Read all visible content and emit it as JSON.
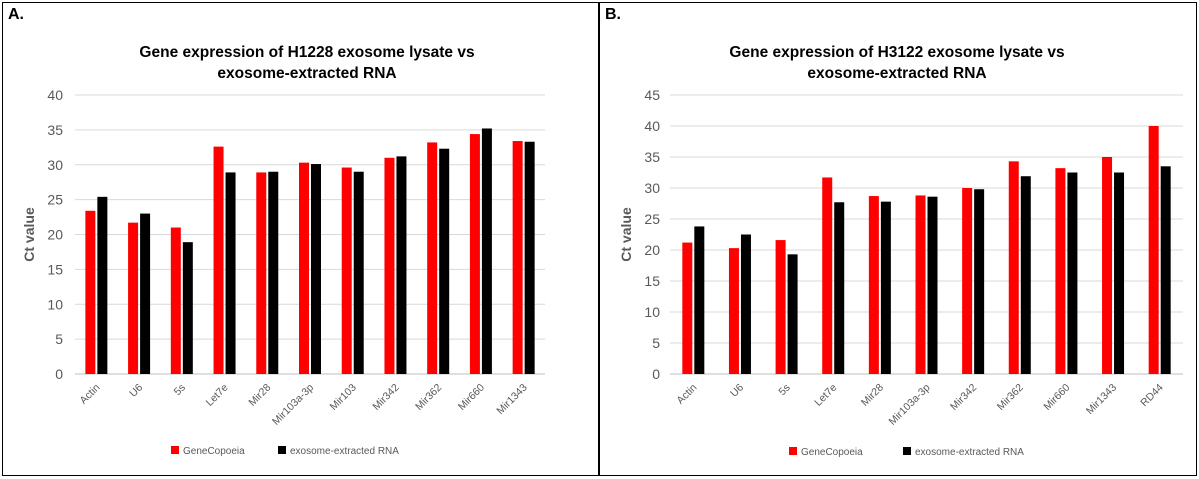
{
  "panels": [
    {
      "label": "A."
    },
    {
      "label": "B."
    }
  ],
  "colors": {
    "genecopoeia": "#ff0000",
    "exosome": "#000000",
    "grid": "#d9d9d9",
    "axis_text": "#595959"
  },
  "chart_data": [
    {
      "type": "bar",
      "title_lines": [
        "Gene expression of H1228  exosome lysate vs",
        "exosome-extracted RNA"
      ],
      "xlabel": "",
      "ylabel": "Ct value",
      "ylim": [
        0,
        40
      ],
      "yticks": [
        0,
        5,
        10,
        15,
        20,
        25,
        30,
        35,
        40
      ],
      "grid": true,
      "legend_position": "bottom",
      "categories": [
        "Actin",
        "U6",
        "5s",
        "Let7e",
        "Mir28",
        "Mir103a-3p",
        "Mir103",
        "Mir342",
        "Mir362",
        "Mir660",
        "Mir1343"
      ],
      "series": [
        {
          "name": "GeneCopoeia",
          "values": [
            23.4,
            21.7,
            21.0,
            32.6,
            28.9,
            30.3,
            29.6,
            31.0,
            33.2,
            34.4,
            33.4
          ]
        },
        {
          "name": "exosome-extracted RNA",
          "values": [
            25.4,
            23.0,
            18.9,
            28.9,
            29.0,
            30.1,
            29.0,
            31.2,
            32.3,
            35.2,
            33.3
          ]
        }
      ]
    },
    {
      "type": "bar",
      "title_lines": [
        "Gene expression of H3122  exosome lysate vs",
        "exosome-extracted RNA"
      ],
      "xlabel": "",
      "ylabel": "Ct value",
      "ylim": [
        0,
        45
      ],
      "yticks": [
        0,
        5,
        10,
        15,
        20,
        25,
        30,
        35,
        40,
        45
      ],
      "grid": true,
      "legend_position": "bottom",
      "categories": [
        "Actin",
        "U6",
        "5s",
        "Let7e",
        "Mir28",
        "Mir103a-3p",
        "Mir342",
        "Mir362",
        "Mir660",
        "Mir1343",
        "RD44"
      ],
      "series": [
        {
          "name": "GeneCopoeia",
          "values": [
            21.2,
            20.3,
            21.6,
            31.7,
            28.7,
            28.8,
            30.0,
            34.3,
            33.2,
            35.0,
            40.0
          ]
        },
        {
          "name": "exosome-extracted RNA",
          "values": [
            23.8,
            22.5,
            19.3,
            27.7,
            27.8,
            28.6,
            29.8,
            31.9,
            32.5,
            32.5,
            33.5
          ]
        }
      ]
    }
  ]
}
